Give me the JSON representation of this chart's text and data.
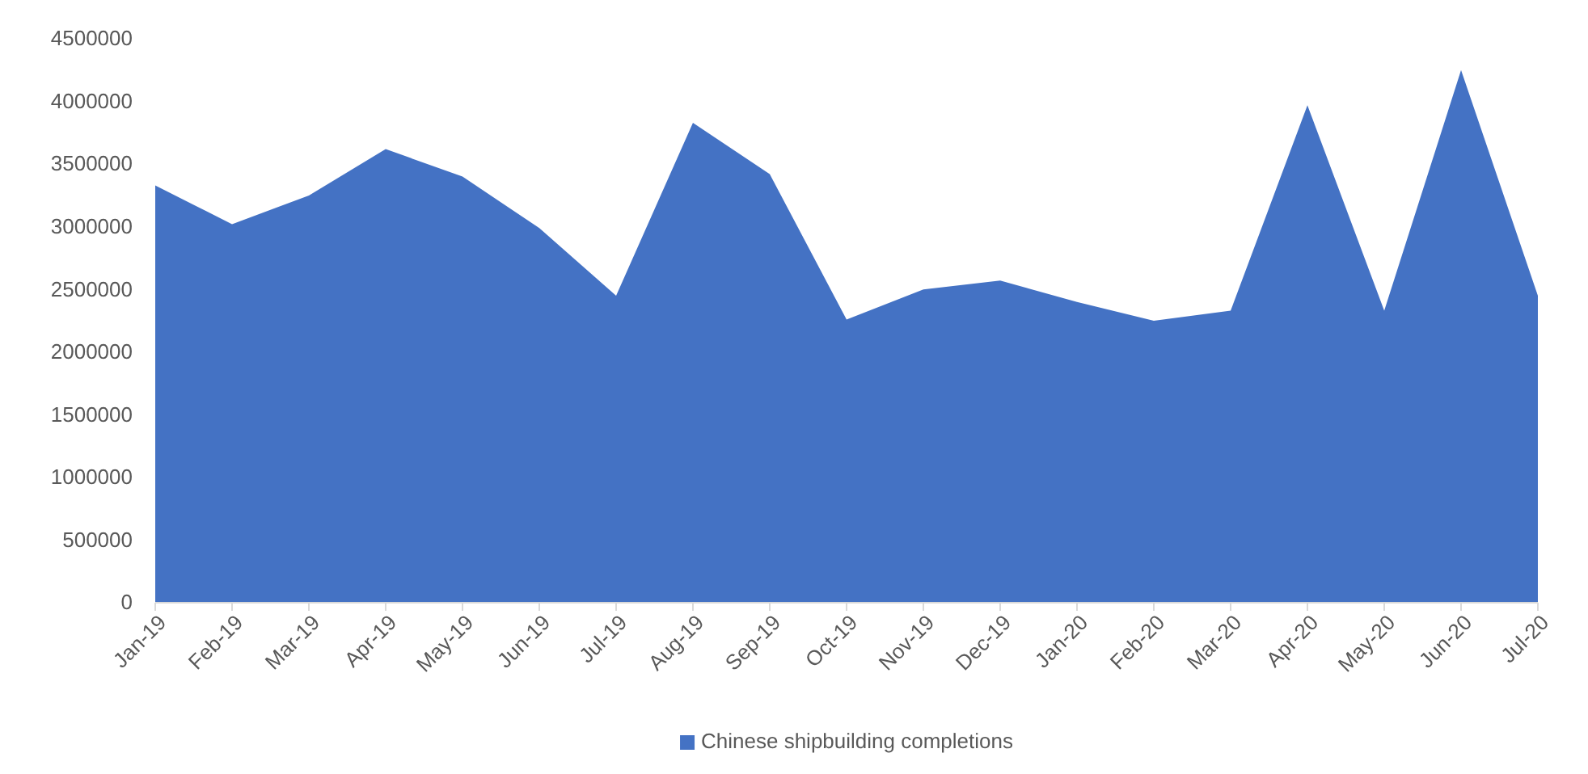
{
  "chart_data": {
    "type": "area",
    "categories": [
      "Jan-19",
      "Feb-19",
      "Mar-19",
      "Apr-19",
      "May-19",
      "Jun-19",
      "Jul-19",
      "Aug-19",
      "Sep-19",
      "Oct-19",
      "Nov-19",
      "Dec-19",
      "Jan-20",
      "Feb-20",
      "Mar-20",
      "Apr-20",
      "May-20",
      "Jun-20",
      "Jul-20"
    ],
    "series": [
      {
        "name": "Chinese shipbuilding completions",
        "color": "#4472c4",
        "values": [
          3330000,
          3020000,
          3250000,
          3620000,
          3400000,
          2990000,
          2450000,
          3830000,
          3420000,
          2260000,
          2500000,
          2570000,
          2400000,
          2250000,
          2330000,
          3970000,
          2330000,
          4250000,
          2450000
        ]
      }
    ],
    "ylim": [
      0,
      4500000
    ],
    "yticks": [
      0,
      500000,
      1000000,
      1500000,
      2000000,
      2500000,
      3000000,
      3500000,
      4000000,
      4500000
    ],
    "grid": false,
    "legend": "bottom"
  }
}
